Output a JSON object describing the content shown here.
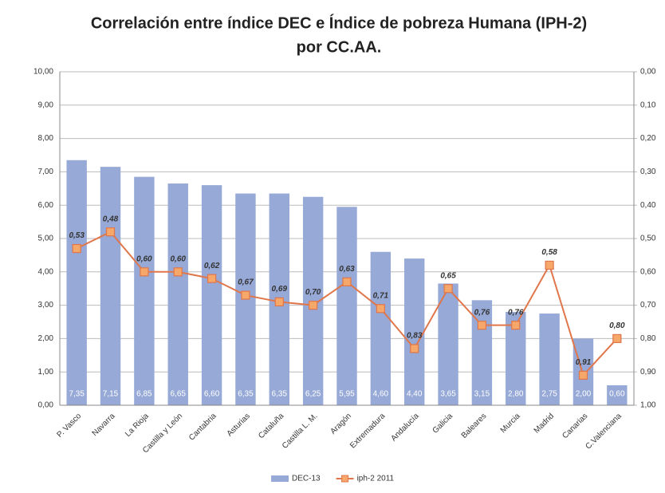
{
  "chart_data": {
    "type": "combo",
    "title": "Correlación entre índice DEC e Índice de pobreza Humana (IPH-2)",
    "subtitle": "por CC.AA.",
    "categories": [
      "P. Vasco",
      "Navarra",
      "La Rioja",
      "Castilla y León",
      "Cantabria",
      "Asturias",
      "Cataluña",
      "Castilla L. M.",
      "Aragón",
      "Extremadura",
      "Andalucía",
      "Galicia",
      "Baleares",
      "Murcia",
      "Madrid",
      "Canarias",
      "C.Valenciana"
    ],
    "series": [
      {
        "name": "DEC-13",
        "type": "bar",
        "color": "#97a9d6",
        "values": [
          7.35,
          7.15,
          6.85,
          6.65,
          6.6,
          6.35,
          6.35,
          6.25,
          5.95,
          4.6,
          4.4,
          3.65,
          3.15,
          2.8,
          2.75,
          2.0,
          0.6
        ],
        "value_labels": [
          "7,35",
          "7,15",
          "6,85",
          "6,65",
          "6,60",
          "6,35",
          "6,35",
          "6,25",
          "5,95",
          "4,60",
          "4,40",
          "3,65",
          "3,15",
          "2,80",
          "2,75",
          "2,00",
          "0,60"
        ]
      },
      {
        "name": "iph-2 2011",
        "type": "line",
        "axis": "y2",
        "color": "#e0764a",
        "marker_color": "#f6a86a",
        "values": [
          0.53,
          0.48,
          0.6,
          0.6,
          0.62,
          0.67,
          0.69,
          0.7,
          0.63,
          0.71,
          0.83,
          0.65,
          0.76,
          0.76,
          0.58,
          0.91,
          0.8
        ],
        "value_labels": [
          "0,53",
          "0,48",
          "0,60",
          "0,60",
          "0,62",
          "0,67",
          "0,69",
          "0,70",
          "0,63",
          "0,71",
          "0,83",
          "0,65",
          "0,76",
          "0,76",
          "0,58",
          "0,91",
          "0,80"
        ]
      }
    ],
    "ylim": [
      0,
      10
    ],
    "yticks": [
      {
        "value": 0,
        "label": "0,00"
      },
      {
        "value": 1,
        "label": "1,00"
      },
      {
        "value": 2,
        "label": "2,00"
      },
      {
        "value": 3,
        "label": "3,00"
      },
      {
        "value": 4,
        "label": "4,00"
      },
      {
        "value": 5,
        "label": "5,00"
      },
      {
        "value": 6,
        "label": "6,00"
      },
      {
        "value": 7,
        "label": "7,00"
      },
      {
        "value": 8,
        "label": "8,00"
      },
      {
        "value": 9,
        "label": "9,00"
      },
      {
        "value": 10,
        "label": "10,00"
      }
    ],
    "y2lim": [
      1,
      0
    ],
    "y2ticks": [
      {
        "value": 0,
        "label": "0,00"
      },
      {
        "value": 0.1,
        "label": "0,10"
      },
      {
        "value": 0.2,
        "label": "0,20"
      },
      {
        "value": 0.3,
        "label": "0,30"
      },
      {
        "value": 0.4,
        "label": "0,40"
      },
      {
        "value": 0.5,
        "label": "0,50"
      },
      {
        "value": 0.6,
        "label": "0,60"
      },
      {
        "value": 0.7,
        "label": "0,70"
      },
      {
        "value": 0.8,
        "label": "0,80"
      },
      {
        "value": 0.9,
        "label": "0,90"
      },
      {
        "value": 1,
        "label": "1,00"
      }
    ],
    "grid": true,
    "legend": "bottom"
  }
}
